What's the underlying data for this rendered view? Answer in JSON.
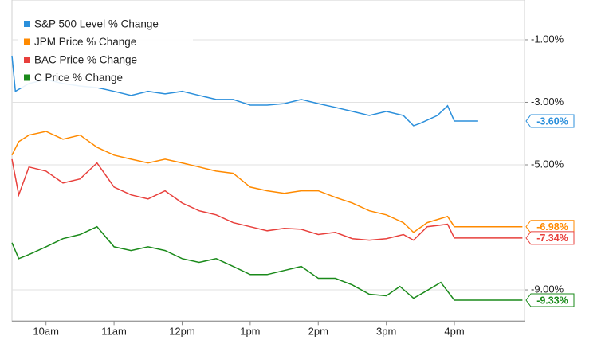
{
  "chart_data": {
    "type": "line",
    "x_type": "hours",
    "xlim": [
      9.5,
      17.03
    ],
    "xticks": [
      {
        "value": 10,
        "label": "10am"
      },
      {
        "value": 11,
        "label": "11am"
      },
      {
        "value": 12,
        "label": "12pm"
      },
      {
        "value": 13,
        "label": "1pm"
      },
      {
        "value": 14,
        "label": "2pm"
      },
      {
        "value": 15,
        "label": "3pm"
      },
      {
        "value": 16,
        "label": "4pm"
      }
    ],
    "ylim": [
      -10,
      0
    ],
    "yticks": [
      {
        "value": -1,
        "label": "-1.00%"
      },
      {
        "value": -3,
        "label": "-3.00%"
      },
      {
        "value": -5,
        "label": "-5.00%"
      },
      {
        "value": -9,
        "label": "-9.00%"
      }
    ],
    "grid": true,
    "legend": "top-left",
    "series": [
      {
        "name": "S&P 500 Level % Change",
        "color": "#2b8fdb",
        "x": [
          9.5,
          9.55,
          9.75,
          10.0,
          10.25,
          10.5,
          10.75,
          11.0,
          11.25,
          11.5,
          11.75,
          12.0,
          12.25,
          12.5,
          12.75,
          13.0,
          13.25,
          13.5,
          13.75,
          14.0,
          14.25,
          14.5,
          14.75,
          15.0,
          15.25,
          15.4,
          15.5,
          15.75,
          15.9,
          16.0,
          16.35
        ],
        "values": [
          -1.51,
          -2.65,
          -2.4,
          -2.27,
          -2.4,
          -2.48,
          -2.53,
          -2.65,
          -2.78,
          -2.65,
          -2.73,
          -2.65,
          -2.78,
          -2.91,
          -2.91,
          -3.09,
          -3.09,
          -3.04,
          -2.91,
          -3.04,
          -3.16,
          -3.29,
          -3.42,
          -3.29,
          -3.42,
          -3.75,
          -3.67,
          -3.42,
          -3.11,
          -3.6,
          -3.6
        ],
        "value_labels": [
          null,
          null,
          null,
          null,
          null,
          null,
          null,
          null,
          null,
          null,
          null,
          null,
          null,
          null,
          null,
          null,
          null,
          null,
          null,
          null,
          null,
          null,
          null,
          null,
          null,
          null,
          null,
          null,
          null,
          null,
          "-3.60%"
        ]
      },
      {
        "name": "JPM Price % Change",
        "color": "#ff8a00",
        "x": [
          9.5,
          9.6,
          9.75,
          10.0,
          10.25,
          10.5,
          10.75,
          11.0,
          11.25,
          11.5,
          11.75,
          12.0,
          12.25,
          12.5,
          12.75,
          13.0,
          13.25,
          13.5,
          13.75,
          14.0,
          14.25,
          14.5,
          14.75,
          15.0,
          15.25,
          15.4,
          15.6,
          15.9,
          16.0,
          17.0
        ],
        "values": [
          -4.69,
          -4.26,
          -4.05,
          -3.93,
          -4.18,
          -4.05,
          -4.44,
          -4.69,
          -4.82,
          -4.94,
          -4.82,
          -4.94,
          -5.07,
          -5.2,
          -5.27,
          -5.71,
          -5.83,
          -5.91,
          -5.83,
          -5.83,
          -6.04,
          -6.22,
          -6.47,
          -6.6,
          -6.85,
          -7.16,
          -6.85,
          -6.65,
          -6.98,
          -6.98
        ],
        "value_labels": [
          null,
          null,
          null,
          null,
          null,
          null,
          null,
          null,
          null,
          null,
          null,
          null,
          null,
          null,
          null,
          null,
          null,
          null,
          null,
          null,
          null,
          null,
          null,
          null,
          null,
          null,
          null,
          null,
          null,
          "-6.98%"
        ]
      },
      {
        "name": "BAC Price % Change",
        "color": "#e8403c",
        "x": [
          9.5,
          9.6,
          9.75,
          10.0,
          10.25,
          10.5,
          10.75,
          11.0,
          11.25,
          11.5,
          11.75,
          12.0,
          12.25,
          12.5,
          12.75,
          13.0,
          13.25,
          13.5,
          13.75,
          14.0,
          14.25,
          14.5,
          14.75,
          15.0,
          15.25,
          15.4,
          15.6,
          15.9,
          16.0,
          17.0
        ],
        "values": [
          -4.82,
          -5.96,
          -5.07,
          -5.2,
          -5.58,
          -5.45,
          -4.94,
          -5.71,
          -5.96,
          -6.09,
          -5.83,
          -6.22,
          -6.47,
          -6.6,
          -6.85,
          -6.98,
          -7.11,
          -7.03,
          -7.06,
          -7.23,
          -7.16,
          -7.36,
          -7.41,
          -7.36,
          -7.23,
          -7.41,
          -6.98,
          -6.9,
          -7.34,
          -7.34
        ],
        "value_labels": [
          null,
          null,
          null,
          null,
          null,
          null,
          null,
          null,
          null,
          null,
          null,
          null,
          null,
          null,
          null,
          null,
          null,
          null,
          null,
          null,
          null,
          null,
          null,
          null,
          null,
          null,
          null,
          null,
          null,
          "-7.34%"
        ]
      },
      {
        "name": "C Price % Change",
        "color": "#1a8a1a",
        "x": [
          9.5,
          9.6,
          9.75,
          10.0,
          10.25,
          10.5,
          10.75,
          11.0,
          11.25,
          11.5,
          11.75,
          12.0,
          12.25,
          12.5,
          12.75,
          13.0,
          13.25,
          13.5,
          13.75,
          14.0,
          14.25,
          14.5,
          14.75,
          15.0,
          15.2,
          15.4,
          15.6,
          15.8,
          16.0,
          17.0
        ],
        "values": [
          -7.49,
          -8.0,
          -7.87,
          -7.62,
          -7.36,
          -7.23,
          -6.98,
          -7.62,
          -7.74,
          -7.62,
          -7.74,
          -8.0,
          -8.12,
          -8.0,
          -8.25,
          -8.51,
          -8.51,
          -8.38,
          -8.25,
          -8.63,
          -8.63,
          -8.84,
          -9.14,
          -9.19,
          -8.89,
          -9.27,
          -9.02,
          -8.76,
          -9.33,
          -9.33
        ],
        "value_labels": [
          null,
          null,
          null,
          null,
          null,
          null,
          null,
          null,
          null,
          null,
          null,
          null,
          null,
          null,
          null,
          null,
          null,
          null,
          null,
          null,
          null,
          null,
          null,
          null,
          null,
          null,
          null,
          null,
          null,
          "-9.33%"
        ]
      }
    ]
  }
}
